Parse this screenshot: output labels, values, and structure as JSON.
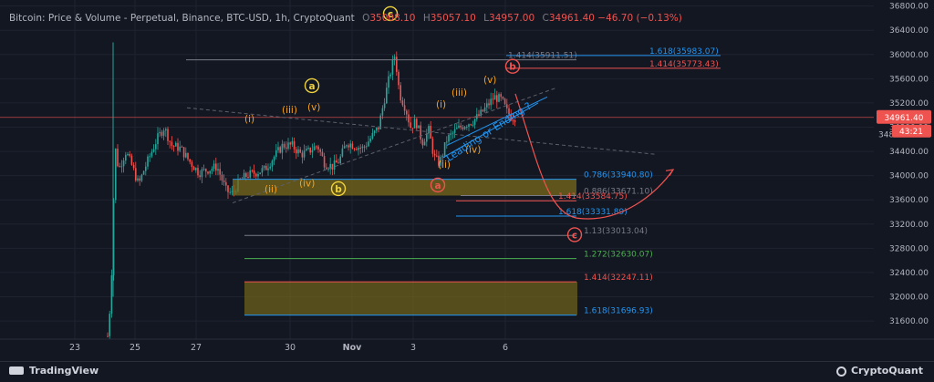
{
  "header": {
    "title": "Bitcoin: Price & Volume - Perpetual, Binance, BTC-USD, 1h, CryptoQuant",
    "open_label": "O",
    "open": "35008.10",
    "high_label": "H",
    "high": "35057.10",
    "low_label": "L",
    "low": "34957.00",
    "close_label": "C",
    "close": "34961.40",
    "change": "−46.70 (−0.13%)"
  },
  "footer": {
    "left_brand": "TradingView",
    "right_brand": "CryptoQuant"
  },
  "colors": {
    "background": "#131722",
    "up": "#26a69a",
    "down": "#ef5350",
    "wave_orange": "#f7a21b",
    "wave_yellow": "#f0d33a",
    "fib_blue": "#2196f3",
    "fib_red": "#ef5350",
    "fib_green": "#4caf50",
    "zone_fill": "#7a6a1a"
  },
  "chart_data": {
    "type": "candlestick",
    "y_range": [
      31300,
      36900
    ],
    "y_ticks": [
      31600,
      32000,
      32400,
      32800,
      33200,
      33600,
      34000,
      34400,
      34800,
      35200,
      35600,
      36000,
      36400,
      36800
    ],
    "y_tick_labels": [
      "31600.00",
      "32000.00",
      "32400.00",
      "32800.00",
      "33200.00",
      "33600.00",
      "34000.00",
      "34400.00",
      "34800.00",
      "35200.00",
      "35600.00",
      "36000.00",
      "36400.00",
      "36800.00"
    ],
    "x_ticks": [
      {
        "label": "23",
        "bold": false
      },
      {
        "label": "25",
        "bold": false
      },
      {
        "label": "27",
        "bold": false
      },
      {
        "label": "30",
        "bold": false
      },
      {
        "label": "Nov",
        "bold": true
      },
      {
        "label": "3",
        "bold": false
      },
      {
        "label": "6",
        "bold": false
      }
    ],
    "current_price": {
      "value": 34961.4,
      "label": "34961.40",
      "countdown": "43:21"
    },
    "partial_axis_label": "348",
    "fib_levels": [
      {
        "ratio_label": "1.618(35983.07)",
        "value": 35983.07,
        "color": "#2196f3"
      },
      {
        "ratio_label": "1.414(35911.51)",
        "value": 35911.51,
        "color": "#787b86"
      },
      {
        "ratio_label": "1.414(35773.43)",
        "value": 35773.43,
        "color": "#ef5350"
      },
      {
        "ratio_label": "0.786(33940.80)",
        "value": 33940.8,
        "color": "#2196f3"
      },
      {
        "ratio_label": "0.886(33671.10)",
        "value": 33671.1,
        "color": "#787b86"
      },
      {
        "ratio_label": "1.414(33584.75)",
        "value": 33584.75,
        "color": "#ef5350"
      },
      {
        "ratio_label": "1.618(33331.89)",
        "value": 33331.89,
        "color": "#2196f3"
      },
      {
        "ratio_label": "1.13(33013.04)",
        "value": 33013.04,
        "color": "#787b86"
      },
      {
        "ratio_label": "1.272(32630.07)",
        "value": 32630.07,
        "color": "#4caf50"
      },
      {
        "ratio_label": "1.414(32247.11)",
        "value": 32247.11,
        "color": "#ef5350"
      },
      {
        "ratio_label": "1.618(31696.93)",
        "value": 31696.93,
        "color": "#2196f3"
      }
    ],
    "wave_labels": [
      {
        "text": "(i)",
        "price": 34880,
        "style": "orange"
      },
      {
        "text": "(ii)",
        "price": 33720,
        "style": "orange"
      },
      {
        "text": "(iii)",
        "price": 35030,
        "style": "orange"
      },
      {
        "text": "(iv)",
        "price": 33820,
        "style": "orange"
      },
      {
        "text": "(v)",
        "price": 35080,
        "style": "orange"
      },
      {
        "text": "a",
        "price": 35440,
        "style": "yellow-circle"
      },
      {
        "text": "b",
        "price": 33740,
        "style": "yellow-circle"
      },
      {
        "text": "c",
        "price": 36630,
        "style": "yellow-circle"
      },
      {
        "text": "(i)",
        "price": 35120,
        "style": "orange"
      },
      {
        "text": "(ii)",
        "price": 34130,
        "style": "orange"
      },
      {
        "text": "(iii)",
        "price": 35320,
        "style": "orange"
      },
      {
        "text": "(iv)",
        "price": 34380,
        "style": "orange"
      },
      {
        "text": "(v)",
        "price": 35530,
        "style": "orange"
      },
      {
        "text": "a",
        "price": 33800,
        "style": "red-circle"
      },
      {
        "text": "b",
        "price": 35760,
        "style": "red-circle"
      },
      {
        "text": "c",
        "price": 32980,
        "style": "red-circle"
      }
    ],
    "annotation": "Leading or Ending ?"
  }
}
